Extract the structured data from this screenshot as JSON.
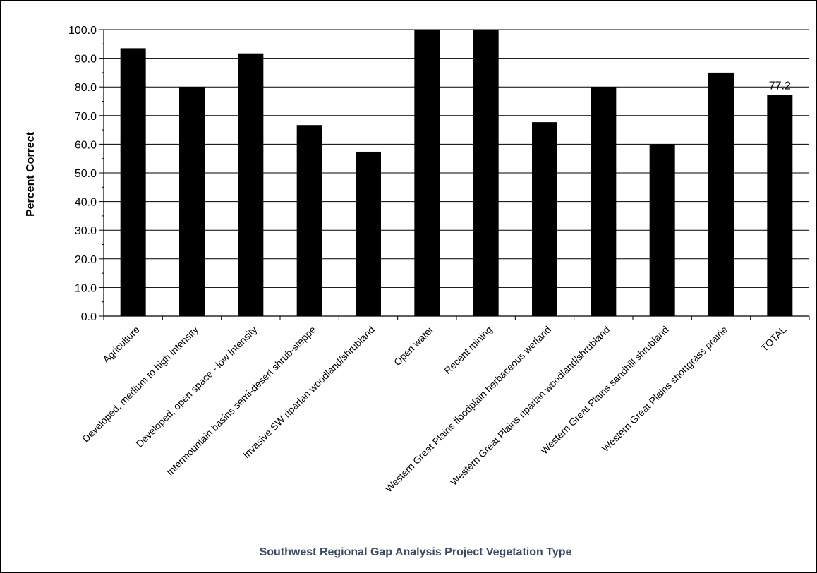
{
  "chart_data": {
    "type": "bar",
    "title": "",
    "xlabel": "Southwest Regional Gap Analysis Project Vegetation Type",
    "ylabel": "Percent Correct",
    "ylim": [
      0,
      100
    ],
    "yticks": [
      "0.0",
      "10.0",
      "20.0",
      "30.0",
      "40.0",
      "50.0",
      "60.0",
      "70.0",
      "80.0",
      "90.0",
      "100.0"
    ],
    "grid": true,
    "legend": "none",
    "bar_color": "#000000",
    "categories": [
      "Agriculture",
      "Developed, medium to high intensity",
      "Developed, open space - low intensity",
      "Intermountain basins semi-desert shrub-steppe",
      "Invasive SW riparian woodland/shrubland",
      "Open water",
      "Recent mining",
      "Western Great Plains floodplain herbaceous wetland",
      "Western Great Plains riparian woodland/shrubland",
      "Western Great Plains sandhill shrubland",
      "Western Great Plains shortgrass prairie",
      "TOTAL"
    ],
    "values": [
      93.5,
      80.0,
      91.7,
      66.7,
      57.4,
      100.0,
      100.0,
      67.7,
      80.0,
      60.0,
      85.0,
      77.2
    ],
    "data_labels": [
      {
        "category": "TOTAL",
        "text": "77.2"
      }
    ]
  }
}
